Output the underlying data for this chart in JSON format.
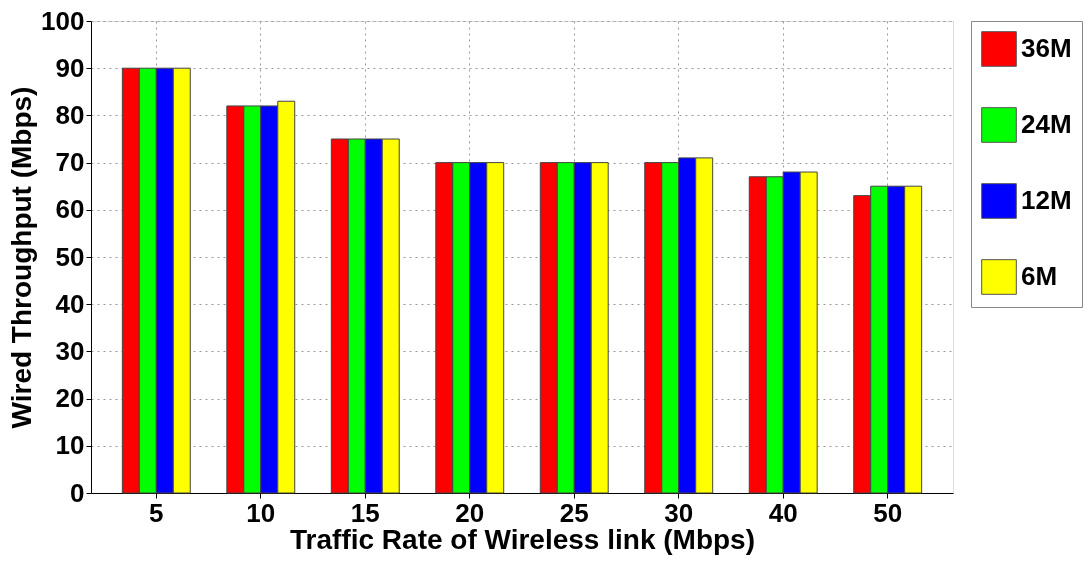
{
  "chart_data": {
    "type": "bar",
    "xlabel": "Traffic Rate of Wireless link (Mbps)",
    "ylabel": "Wired Throughput (Mbps)",
    "categories": [
      "5",
      "10",
      "15",
      "20",
      "25",
      "30",
      "40",
      "50"
    ],
    "series": [
      {
        "name": "36M",
        "color": "#ff0000",
        "values": [
          90,
          82,
          75,
          70,
          70,
          70,
          67,
          63
        ]
      },
      {
        "name": "24M",
        "color": "#00ff00",
        "values": [
          90,
          82,
          75,
          70,
          70,
          70,
          67,
          65
        ]
      },
      {
        "name": "12M",
        "color": "#0000ff",
        "values": [
          90,
          82,
          75,
          70,
          70,
          71,
          68,
          65
        ]
      },
      {
        "name": "6M",
        "color": "#ffff00",
        "values": [
          90,
          83,
          75,
          70,
          70,
          71,
          68,
          65
        ]
      }
    ],
    "ylim": [
      0,
      100
    ],
    "yticks": [
      0,
      10,
      20,
      30,
      40,
      50,
      60,
      70,
      80,
      90,
      100
    ],
    "grid": true,
    "legend": "right"
  }
}
